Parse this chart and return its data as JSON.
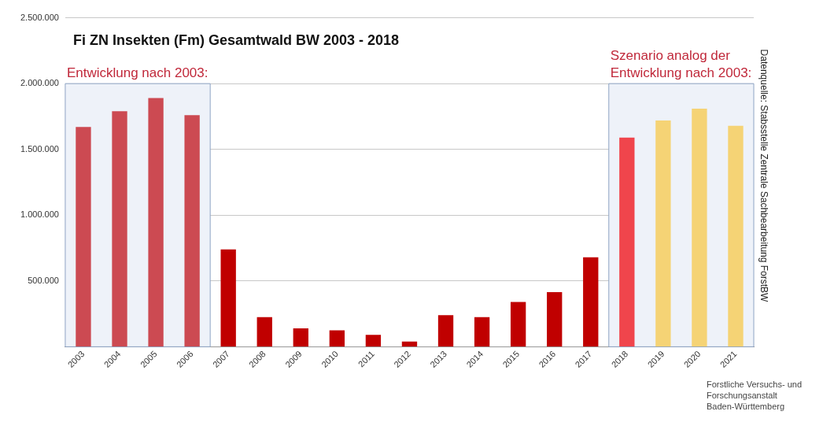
{
  "chart_data": {
    "type": "bar",
    "title": "Fi ZN Insekten (Fm) Gesamtwald BW 2003 - 2018",
    "categories": [
      "2003",
      "2004",
      "2005",
      "2006",
      "2007",
      "2008",
      "2009",
      "2010",
      "2011",
      "2012",
      "2013",
      "2014",
      "2015",
      "2016",
      "2017",
      "2018",
      "2019",
      "2020",
      "2021"
    ],
    "values": [
      1670000,
      1790000,
      1890000,
      1760000,
      740000,
      225000,
      140000,
      125000,
      90000,
      40000,
      240000,
      225000,
      340000,
      415000,
      680000,
      1590000,
      1720000,
      1810000,
      1680000
    ],
    "colors": [
      "#cc4a52",
      "#cc4a52",
      "#cc4a52",
      "#cc4a52",
      "#c00000",
      "#c00000",
      "#c00000",
      "#c00000",
      "#c00000",
      "#c00000",
      "#c00000",
      "#c00000",
      "#c00000",
      "#c00000",
      "#c00000",
      "#f0454c",
      "#f5d375",
      "#f5d375",
      "#f5d375"
    ],
    "ylim": [
      0,
      2500000
    ],
    "yticks": [
      {
        "value": 500000,
        "label": "500.000"
      },
      {
        "value": 1000000,
        "label": "1.000.000"
      },
      {
        "value": 1500000,
        "label": "1.500.000"
      },
      {
        "value": 2000000,
        "label": "2.000.000"
      },
      {
        "value": 2500000,
        "label": "2.500.000"
      }
    ],
    "grid": "y",
    "bands": [
      {
        "axis": "x",
        "from": "2003",
        "to": "2006",
        "label": "Entwicklung nach 2003:",
        "color": "#eef2f9"
      },
      {
        "axis": "x",
        "from": "2018",
        "to": "2021",
        "label": "Szenario analog der Entwicklung nach 2003:",
        "color": "#eef2f9"
      }
    ],
    "annotations": [
      "Datenquelle: Stabsstelle Zentrale Sachbearbeitung ForstBW",
      "Forstliche Versuchs- und Forschungsanstalt Baden-Württemberg"
    ]
  }
}
